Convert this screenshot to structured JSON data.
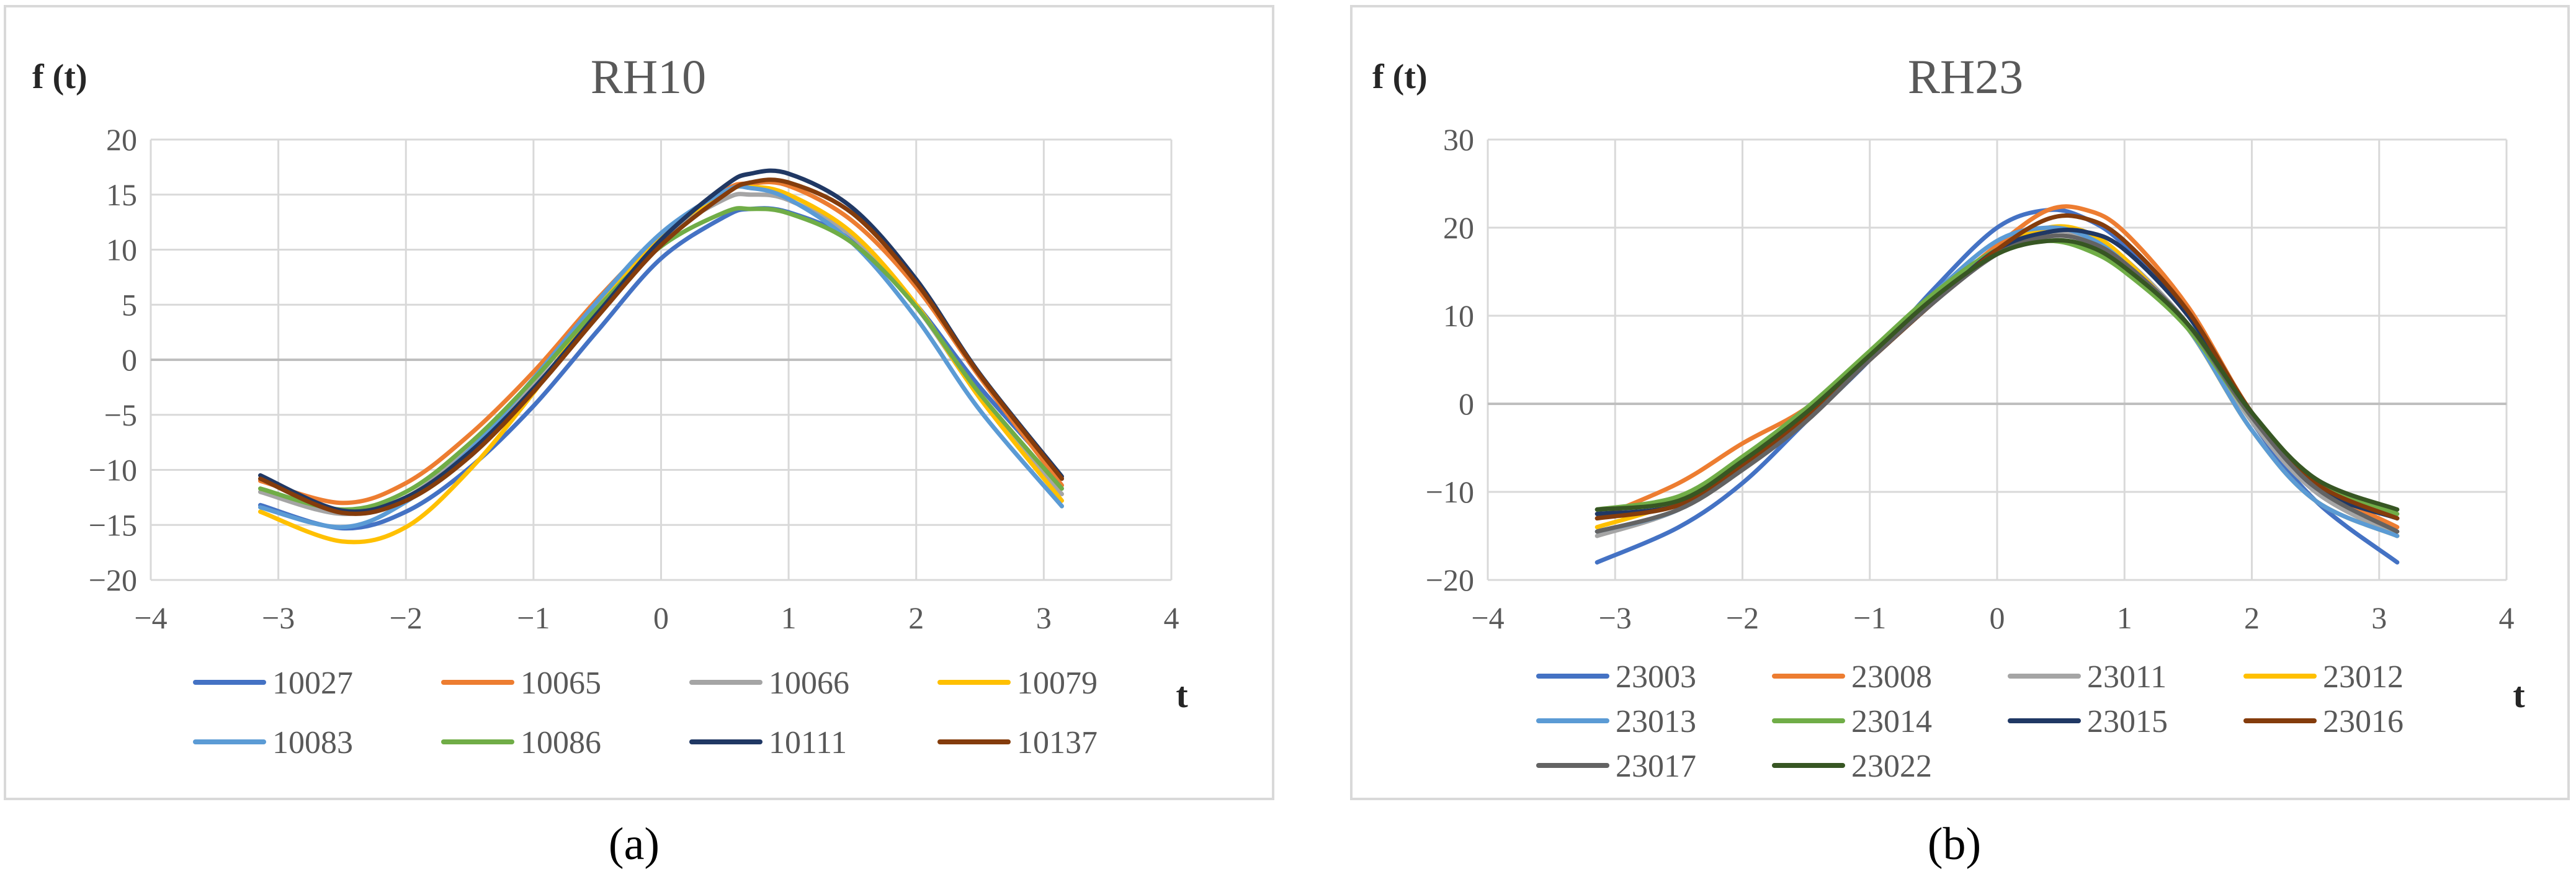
{
  "figure": {
    "panel_a_label": "(a)",
    "panel_b_label": "(b)"
  },
  "chart_data": [
    {
      "type": "line",
      "title": "RH10",
      "ylabel": "f (t)",
      "xlabel": "t",
      "xlim": [
        -4,
        4
      ],
      "ylim": [
        -20,
        20
      ],
      "xticks": [
        -4,
        -3,
        -2,
        -1,
        0,
        1,
        2,
        3,
        4
      ],
      "yticks": [
        -20,
        -15,
        -10,
        -5,
        0,
        5,
        10,
        15,
        20
      ],
      "grid": true,
      "legend_position": "bottom",
      "x": [
        -3.1416,
        -2.5,
        -2.0,
        -1.5,
        -1.0,
        -0.5,
        0.0,
        0.5,
        0.7,
        1.0,
        1.5,
        2.0,
        2.5,
        3.1416
      ],
      "series": [
        {
          "name": "10027",
          "color": "#4472C4",
          "values": [
            -13.2,
            -15.3,
            -13.8,
            -9.8,
            -4.2,
            2.6,
            9.2,
            13.0,
            13.7,
            13.4,
            10.8,
            5.0,
            -2.5,
            -10.8
          ]
        },
        {
          "name": "10065",
          "color": "#ED7D31",
          "values": [
            -11.0,
            -13.0,
            -11.2,
            -6.8,
            -1.1,
            5.5,
            11.3,
            15.4,
            16.0,
            15.8,
            12.6,
            6.6,
            -1.6,
            -11.4
          ]
        },
        {
          "name": "10066",
          "color": "#A5A5A5",
          "values": [
            -12.0,
            -14.0,
            -12.5,
            -8.0,
            -2.0,
            5.0,
            11.0,
            14.6,
            15.0,
            14.5,
            11.2,
            4.8,
            -3.4,
            -12.2
          ]
        },
        {
          "name": "10079",
          "color": "#FFC000",
          "values": [
            -13.8,
            -16.5,
            -15.2,
            -10.0,
            -3.0,
            4.8,
            11.2,
            15.2,
            15.7,
            15.0,
            11.5,
            5.0,
            -3.5,
            -12.8
          ]
        },
        {
          "name": "10083",
          "color": "#5B9BD5",
          "values": [
            -13.4,
            -15.2,
            -12.9,
            -8.2,
            -1.7,
            5.3,
            11.5,
            15.3,
            15.6,
            14.6,
            10.6,
            3.8,
            -4.6,
            -13.3
          ]
        },
        {
          "name": "10086",
          "color": "#70AD47",
          "values": [
            -11.7,
            -13.6,
            -12.0,
            -7.6,
            -1.8,
            4.7,
            10.3,
            13.4,
            13.7,
            13.3,
            10.6,
            4.8,
            -3.1,
            -11.7
          ]
        },
        {
          "name": "10111",
          "color": "#203864",
          "values": [
            -10.5,
            -13.7,
            -12.5,
            -8.4,
            -2.6,
            4.2,
            10.9,
            15.8,
            16.9,
            16.9,
            13.8,
            7.3,
            -1.3,
            -10.6
          ]
        },
        {
          "name": "10137",
          "color": "#843C0C",
          "values": [
            -10.8,
            -13.9,
            -12.8,
            -8.8,
            -2.9,
            3.9,
            10.4,
            15.0,
            16.1,
            16.1,
            13.3,
            7.0,
            -1.4,
            -10.8
          ]
        }
      ]
    },
    {
      "type": "line",
      "title": "RH23",
      "ylabel": "f (t)",
      "xlabel": "t",
      "xlim": [
        -4,
        4
      ],
      "ylim": [
        -20,
        30
      ],
      "xticks": [
        -4,
        -3,
        -2,
        -1,
        0,
        1,
        2,
        3,
        4
      ],
      "yticks": [
        -20,
        -10,
        0,
        10,
        20,
        30
      ],
      "grid": true,
      "legend_position": "bottom",
      "x": [
        -3.1416,
        -2.5,
        -2.0,
        -1.5,
        -1.0,
        -0.5,
        0.0,
        0.4,
        0.7,
        1.0,
        1.5,
        2.0,
        2.5,
        3.1416
      ],
      "series": [
        {
          "name": "23003",
          "color": "#4472C4",
          "values": [
            -18.0,
            -14.0,
            -9.0,
            -2.0,
            5.0,
            13.0,
            20.0,
            22.0,
            21.0,
            18.0,
            10.0,
            -2.0,
            -11.0,
            -18.0
          ]
        },
        {
          "name": "23008",
          "color": "#ED7D31",
          "values": [
            -13.0,
            -9.0,
            -4.5,
            -0.5,
            5.5,
            12.0,
            18.0,
            22.0,
            22.0,
            19.5,
            11.0,
            -1.0,
            -9.0,
            -14.0
          ]
        },
        {
          "name": "23011",
          "color": "#A5A5A5",
          "values": [
            -15.0,
            -12.0,
            -7.0,
            -1.5,
            5.5,
            12.0,
            17.5,
            19.5,
            19.0,
            16.5,
            9.0,
            -2.0,
            -10.0,
            -15.0
          ]
        },
        {
          "name": "23012",
          "color": "#FFC000",
          "values": [
            -14.0,
            -11.0,
            -6.0,
            -1.0,
            5.5,
            12.0,
            17.5,
            20.0,
            19.5,
            16.5,
            8.5,
            -3.0,
            -11.0,
            -15.0
          ]
        },
        {
          "name": "23013",
          "color": "#5B9BD5",
          "values": [
            -14.5,
            -12.0,
            -7.0,
            -1.5,
            5.5,
            12.5,
            18.5,
            20.0,
            19.0,
            16.0,
            8.5,
            -3.0,
            -11.0,
            -15.0
          ]
        },
        {
          "name": "23014",
          "color": "#70AD47",
          "values": [
            -12.0,
            -10.5,
            -6.0,
            -0.5,
            6.0,
            12.5,
            17.5,
            18.5,
            17.5,
            15.0,
            8.5,
            -1.5,
            -9.0,
            -12.5
          ]
        },
        {
          "name": "23015",
          "color": "#203864",
          "values": [
            -12.5,
            -11.5,
            -7.0,
            -1.5,
            5.0,
            11.5,
            17.5,
            19.5,
            19.5,
            17.5,
            10.0,
            -1.0,
            -9.5,
            -13.0
          ]
        },
        {
          "name": "23016",
          "color": "#843C0C",
          "values": [
            -13.0,
            -11.5,
            -7.0,
            -1.5,
            5.0,
            11.5,
            17.5,
            21.0,
            21.0,
            18.5,
            10.5,
            -1.0,
            -9.0,
            -13.0
          ]
        },
        {
          "name": "23017",
          "color": "#636363",
          "values": [
            -14.5,
            -12.0,
            -7.5,
            -2.0,
            5.0,
            11.5,
            17.0,
            19.0,
            18.5,
            16.0,
            9.0,
            -1.5,
            -9.5,
            -14.5
          ]
        },
        {
          "name": "23022",
          "color": "#375623",
          "values": [
            -12.0,
            -11.0,
            -6.5,
            -1.0,
            5.5,
            12.0,
            17.0,
            18.5,
            18.0,
            15.5,
            9.0,
            -1.0,
            -8.5,
            -12.0
          ]
        }
      ]
    }
  ]
}
